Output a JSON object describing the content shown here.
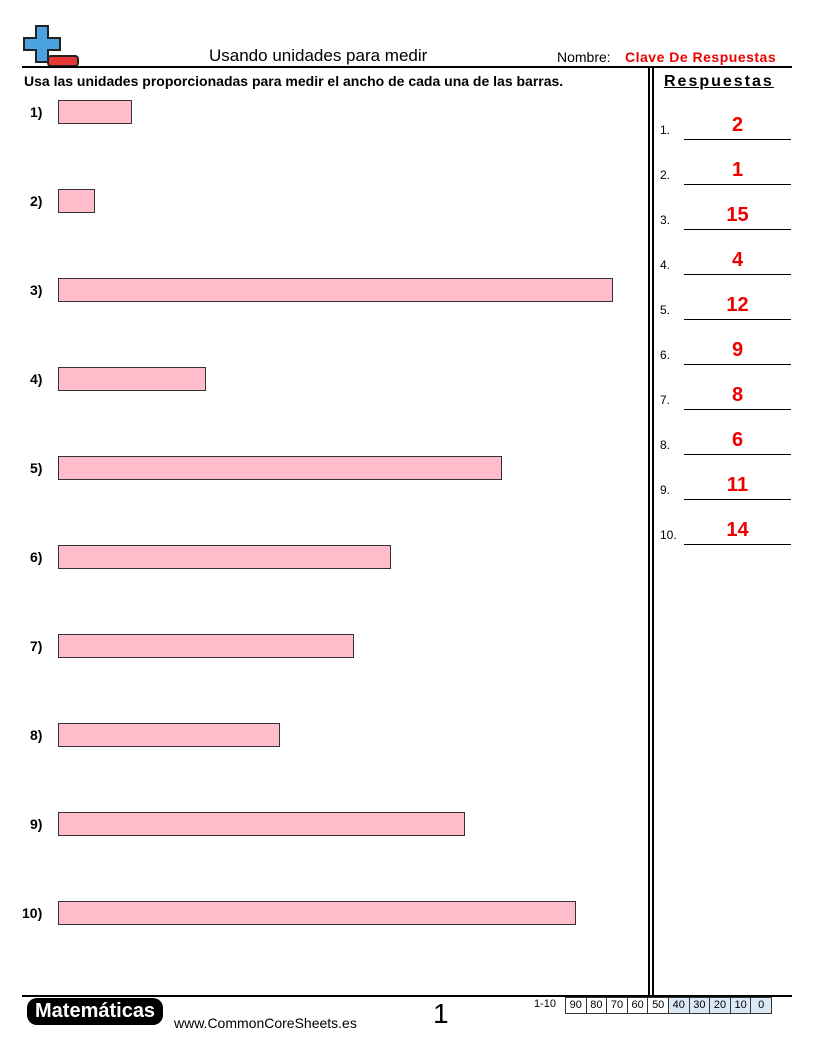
{
  "header": {
    "title": "Usando unidades para medir",
    "name_label": "Nombre:",
    "name_value": "Clave De Respuestas"
  },
  "instructions": "Usa las unidades proporcionadas para medir el ancho de cada una de las barras.",
  "problems": [
    "1)",
    "2)",
    "3)",
    "4)",
    "5)",
    "6)",
    "7)",
    "8)",
    "9)",
    "10)"
  ],
  "answers": {
    "title": "Respuestas",
    "labels": [
      "1.",
      "2.",
      "3.",
      "4.",
      "5.",
      "6.",
      "7.",
      "8.",
      "9.",
      "10."
    ],
    "values": [
      2,
      1,
      15,
      4,
      12,
      9,
      8,
      6,
      11,
      14
    ]
  },
  "footer": {
    "brand": "Matemáticas",
    "site": "www.CommonCoreSheets.es",
    "page": "1",
    "score_label": "1-10",
    "scores": [
      90,
      80,
      70,
      60,
      50,
      40,
      30,
      20,
      10,
      0
    ]
  }
}
